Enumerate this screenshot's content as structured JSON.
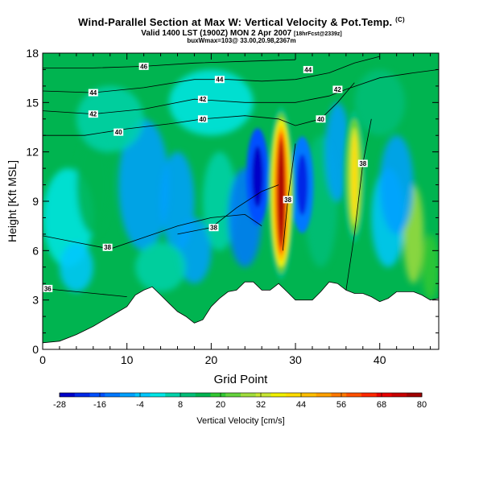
{
  "title": "Wind-Parallel Section at Max W: Vertical Velocity & Pot.Temp.",
  "title_mark": "(C)",
  "subtitle_main": "Valid 1400 LST (1900Z) MON 2 Apr 2007",
  "subtitle_note": "[18hrFcst@2339z]",
  "subtitle2": "buxWmax=103@ 33.00,20.98,2367m",
  "chart_data": {
    "type": "heatmap",
    "xlabel": "Grid Point",
    "ylabel": "Height [Kft MSL]",
    "xlim": [
      0,
      47
    ],
    "ylim": [
      0,
      18
    ],
    "x_ticks": [
      0,
      10,
      20,
      30,
      40
    ],
    "y_ticks": [
      0,
      3,
      6,
      9,
      12,
      15,
      18
    ],
    "colorbar": {
      "label": "Vertical Velocity [cm/s]",
      "tick_labels": [
        "-28",
        "-16",
        "-4",
        "8",
        "20",
        "32",
        "44",
        "56",
        "68",
        "80"
      ],
      "levels": [
        -28,
        80
      ],
      "colors": [
        "#0000c8",
        "#0028e6",
        "#0050ff",
        "#0078ff",
        "#00a0ff",
        "#00c8ff",
        "#00e6e6",
        "#00d2aa",
        "#00be78",
        "#00b450",
        "#32c832",
        "#64d23c",
        "#a0dc3c",
        "#c8e632",
        "#f0f000",
        "#ffdc00",
        "#ffbe00",
        "#ffa000",
        "#ff7800",
        "#ff5000",
        "#ff2800",
        "#e60000",
        "#c80000",
        "#a00000"
      ]
    },
    "terrain_kft": [
      [
        0,
        0.4
      ],
      [
        2,
        0.5
      ],
      [
        4,
        0.9
      ],
      [
        6,
        1.4
      ],
      [
        8,
        2.0
      ],
      [
        10,
        2.6
      ],
      [
        11,
        3.3
      ],
      [
        12,
        3.6
      ],
      [
        13,
        3.8
      ],
      [
        14,
        3.3
      ],
      [
        15,
        2.8
      ],
      [
        16,
        2.3
      ],
      [
        17,
        2.0
      ],
      [
        18,
        1.6
      ],
      [
        19,
        1.8
      ],
      [
        20,
        2.6
      ],
      [
        21,
        3.1
      ],
      [
        22,
        3.5
      ],
      [
        23,
        3.6
      ],
      [
        24,
        4.1
      ],
      [
        25,
        4.1
      ],
      [
        26,
        3.6
      ],
      [
        27,
        3.6
      ],
      [
        28,
        4.0
      ],
      [
        29,
        3.5
      ],
      [
        30,
        3.0
      ],
      [
        31,
        3.0
      ],
      [
        32,
        3.0
      ],
      [
        33,
        3.5
      ],
      [
        34,
        4.1
      ],
      [
        35,
        4.0
      ],
      [
        36,
        3.6
      ],
      [
        37,
        3.4
      ],
      [
        38,
        3.4
      ],
      [
        39,
        3.2
      ],
      [
        40,
        2.9
      ],
      [
        41,
        3.1
      ],
      [
        42,
        3.5
      ],
      [
        43,
        3.5
      ],
      [
        44,
        3.5
      ],
      [
        45,
        3.3
      ],
      [
        46,
        3.0
      ],
      [
        47,
        3.1
      ]
    ],
    "updraft_cores": [
      {
        "x": 28.3,
        "y": 9.5,
        "w_peak": 80
      },
      {
        "x": 37.0,
        "y": 10.5,
        "w_peak": 40
      }
    ],
    "downdraft_cores": [
      {
        "x": 25.5,
        "y": 10.5,
        "w_peak": -28
      },
      {
        "x": 30.8,
        "y": 10.0,
        "w_peak": -22
      }
    ],
    "theta_contours": [
      {
        "label": "36",
        "label_x": 0.6,
        "label_y": 3.7,
        "points": [
          [
            0,
            3.7
          ],
          [
            4,
            3.5
          ],
          [
            8,
            3.3
          ],
          [
            10,
            3.2
          ]
        ]
      },
      {
        "label": "38",
        "label_x": 7.7,
        "label_y": 6.2,
        "points": [
          [
            0,
            6.9
          ],
          [
            4,
            6.5
          ],
          [
            8,
            6.1
          ],
          [
            12,
            6.8
          ],
          [
            16,
            7.5
          ],
          [
            20,
            8.0
          ],
          [
            24,
            8.2
          ],
          [
            26,
            7.5
          ]
        ]
      },
      {
        "label": "38",
        "label_x": 20.3,
        "label_y": 7.4,
        "points": [
          [
            16,
            7.0
          ],
          [
            20,
            7.4
          ],
          [
            23,
            8.6
          ],
          [
            26,
            9.6
          ],
          [
            28,
            10.0
          ]
        ]
      },
      {
        "label": "38",
        "label_x": 29.1,
        "label_y": 9.1,
        "points": [
          [
            28.5,
            6.0
          ],
          [
            29.1,
            9.1
          ],
          [
            30,
            12.5
          ]
        ]
      },
      {
        "label": "38",
        "label_x": 38.0,
        "label_y": 11.3,
        "points": [
          [
            36,
            3.6
          ],
          [
            37,
            7.0
          ],
          [
            38,
            11.3
          ],
          [
            39,
            14.0
          ]
        ]
      },
      {
        "label": "40",
        "label_x": 9.0,
        "label_y": 13.2,
        "points": [
          [
            0,
            13.0
          ],
          [
            5,
            13.0
          ],
          [
            10,
            13.4
          ],
          [
            15,
            13.7
          ],
          [
            19,
            14.0
          ],
          [
            24,
            14.2
          ],
          [
            28,
            14.0
          ],
          [
            30,
            13.6
          ]
        ]
      },
      {
        "label": "40",
        "label_x": 19.0,
        "label_y": 14.0,
        "points": [
          [
            30,
            13.6
          ],
          [
            33,
            14.0
          ],
          [
            35,
            15.0
          ],
          [
            37,
            16.2
          ]
        ]
      },
      {
        "label": "40",
        "label_x": 33.0,
        "label_y": 14.0,
        "points": []
      },
      {
        "label": "42",
        "label_x": 6.0,
        "label_y": 14.3,
        "points": [
          [
            0,
            14.5
          ],
          [
            6,
            14.3
          ],
          [
            12,
            14.6
          ],
          [
            18,
            15.2
          ],
          [
            24,
            15.0
          ],
          [
            30,
            15.0
          ],
          [
            34,
            15.4
          ],
          [
            36,
            15.8
          ]
        ]
      },
      {
        "label": "42",
        "label_x": 19.0,
        "label_y": 15.2,
        "points": []
      },
      {
        "label": "42",
        "label_x": 35.0,
        "label_y": 15.8,
        "points": [
          [
            36,
            15.8
          ],
          [
            40,
            16.5
          ],
          [
            44,
            16.8
          ],
          [
            47,
            17.0
          ]
        ]
      },
      {
        "label": "44",
        "label_x": 6.0,
        "label_y": 15.6,
        "points": [
          [
            0,
            15.7
          ],
          [
            6,
            15.6
          ],
          [
            12,
            15.9
          ],
          [
            18,
            16.4
          ],
          [
            22,
            16.4
          ],
          [
            26,
            16.3
          ],
          [
            30,
            16.4
          ],
          [
            34,
            16.8
          ],
          [
            37,
            17.4
          ],
          [
            40,
            17.8
          ]
        ]
      },
      {
        "label": "44",
        "label_x": 21.0,
        "label_y": 16.4,
        "points": []
      },
      {
        "label": "44",
        "label_x": 31.5,
        "label_y": 17.0,
        "points": []
      },
      {
        "label": "46",
        "label_x": 12.0,
        "label_y": 17.2,
        "points": [
          [
            0,
            17.1
          ],
          [
            6,
            17.1
          ],
          [
            12,
            17.2
          ],
          [
            18,
            17.4
          ],
          [
            24,
            17.5
          ],
          [
            30,
            17.6
          ]
        ]
      }
    ]
  }
}
